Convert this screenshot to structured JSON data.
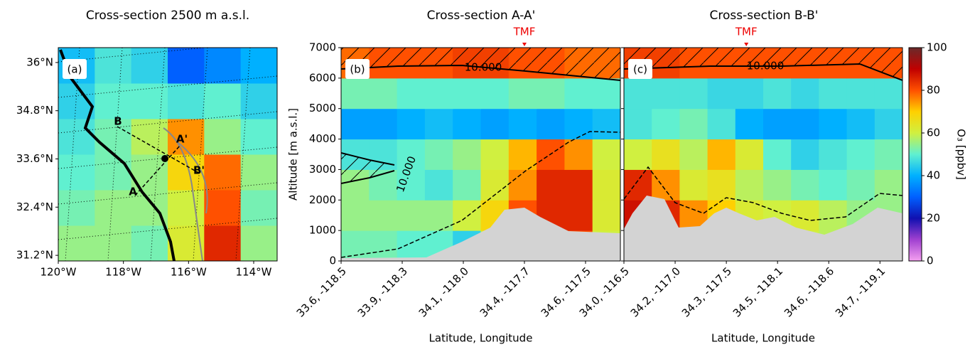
{
  "chart_data": [
    {
      "type": "map",
      "title": "Cross-section 2500 m a.s.l.",
      "panel_label": "(a)",
      "xlim": [
        -120.0,
        -113.28
      ],
      "xticks": [
        {
          "value": -120,
          "label": "120°W"
        },
        {
          "value": -118,
          "label": "118°W"
        },
        {
          "value": -116,
          "label": "116°W"
        },
        {
          "value": -114,
          "label": "114°W"
        }
      ],
      "ylim": [
        31.06,
        36.37
      ],
      "yticks": [
        {
          "value": 31.2,
          "label": "31.2°N"
        },
        {
          "value": 32.4,
          "label": "32.4°N"
        },
        {
          "value": 33.6,
          "label": "33.6°N"
        },
        {
          "value": 34.8,
          "label": "34.8°N"
        },
        {
          "value": 36,
          "label": "36°N"
        }
      ],
      "section_labels": [
        "A",
        "A'",
        "B",
        "B'"
      ],
      "z": [
        [
          55,
          55,
          52,
          62,
          85,
          55
        ],
        [
          52,
          55,
          55,
          60,
          80,
          52
        ],
        [
          50,
          52,
          55,
          68,
          78,
          55
        ],
        [
          48,
          52,
          58,
          75,
          55,
          50
        ],
        [
          45,
          50,
          50,
          48,
          50,
          45
        ],
        [
          42,
          48,
          45,
          30,
          35,
          40
        ]
      ]
    },
    {
      "type": "heatmap",
      "title": "Cross-section A-A'",
      "panel_label": "(b)",
      "ylabel": "Altitude [m a.s.l.]",
      "xlabel": "Latitude, Longitude",
      "annotation": {
        "text": "TMF",
        "x": 3
      },
      "contour_label": "10.000",
      "xlim": [
        0,
        4.57
      ],
      "xticks": [
        {
          "value": 0,
          "label": "33.6, -118.5"
        },
        {
          "value": 1,
          "label": "33.9, -118.3"
        },
        {
          "value": 2,
          "label": "34.1, -118.0"
        },
        {
          "value": 3,
          "label": "34.4, -117.7"
        },
        {
          "value": 4,
          "label": "34.6, -117.5"
        }
      ],
      "ylim": [
        0,
        7000
      ],
      "yticks": [
        0,
        1000,
        2000,
        3000,
        4000,
        5000,
        6000,
        7000
      ],
      "ytick_labels": true,
      "z": [
        [
          52,
          52,
          50,
          50,
          45,
          60,
          70,
          80,
          80,
          60
        ],
        [
          55,
          55,
          55,
          55,
          60,
          68,
          80,
          85,
          85,
          62
        ],
        [
          55,
          52,
          50,
          48,
          52,
          62,
          75,
          85,
          85,
          62
        ],
        [
          48,
          48,
          50,
          52,
          55,
          60,
          72,
          80,
          75,
          60
        ],
        [
          38,
          38,
          40,
          42,
          40,
          38,
          40,
          38,
          40,
          42
        ],
        [
          52,
          52,
          50,
          50,
          50,
          50,
          52,
          52,
          50,
          50
        ],
        [
          78,
          80,
          80,
          80,
          82,
          82,
          80,
          80,
          78,
          78
        ]
      ]
    },
    {
      "type": "heatmap",
      "title": "Cross-section B-B'",
      "panel_label": "(c)",
      "xlabel": "Latitude, Longitude",
      "annotation": {
        "text": "TMF",
        "x": 2.39
      },
      "contour_label": "10.000",
      "xlim": [
        0,
        5.44
      ],
      "xticks": [
        {
          "value": 0,
          "label": "34.0, -116.5"
        },
        {
          "value": 1,
          "label": "34.2, -117.0"
        },
        {
          "value": 2,
          "label": "34.3, -117.5"
        },
        {
          "value": 3,
          "label": "34.5, -118.1"
        },
        {
          "value": 4,
          "label": "34.6, -118.6"
        },
        {
          "value": 5,
          "label": "34.7, -119.1"
        }
      ],
      "ylim": [
        0,
        7000
      ],
      "yticks": [
        0,
        1000,
        2000,
        3000,
        4000,
        5000,
        6000,
        7000
      ],
      "ytick_labels": false,
      "z": [
        [
          85,
          80,
          70,
          65,
          60,
          60,
          60,
          58,
          55,
          55
        ],
        [
          88,
          85,
          75,
          70,
          62,
          60,
          62,
          58,
          55,
          55
        ],
        [
          85,
          75,
          62,
          65,
          58,
          55,
          52,
          50,
          52,
          55
        ],
        [
          60,
          65,
          58,
          72,
          62,
          50,
          45,
          48,
          50,
          52
        ],
        [
          48,
          50,
          52,
          48,
          40,
          38,
          38,
          40,
          42,
          45
        ],
        [
          48,
          48,
          48,
          46,
          46,
          48,
          46,
          48,
          48,
          48
        ],
        [
          82,
          82,
          80,
          80,
          80,
          80,
          80,
          80,
          80,
          80
        ]
      ]
    },
    {
      "type": "colorbar",
      "label": "O₃ [ppbv]",
      "ylim": [
        0,
        100
      ],
      "yticks": [
        0,
        20,
        40,
        60,
        80,
        100
      ],
      "colormap": [
        "#f5a0f0",
        "#a040d0",
        "#1010b0",
        "#0060ff",
        "#00b0ff",
        "#60f0d0",
        "#d0f040",
        "#ffd000",
        "#ff5000",
        "#c00000",
        "#6a2a2a"
      ]
    }
  ]
}
